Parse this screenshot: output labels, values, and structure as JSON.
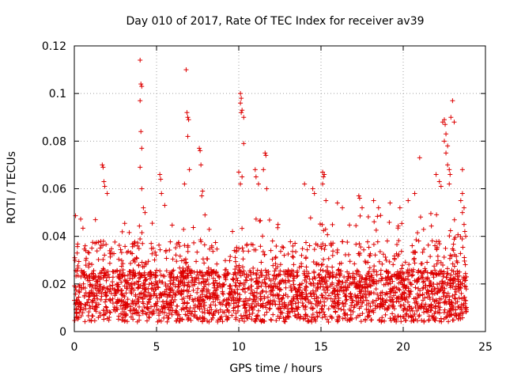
{
  "chart_data": {
    "type": "scatter",
    "title": "Day 010 of 2017, Rate Of TEC Index for receiver av39",
    "xlabel": "GPS time / hours",
    "ylabel": "ROTI / TECUs",
    "xlim": [
      0,
      25
    ],
    "ylim": [
      0,
      0.12
    ],
    "xticks": [
      0,
      5,
      10,
      15,
      20,
      25
    ],
    "xtick_labels": [
      "0",
      "5",
      "10",
      "15",
      "20",
      "25"
    ],
    "yticks": [
      0,
      0.02,
      0.04,
      0.06,
      0.08,
      0.1,
      0.12
    ],
    "ytick_labels": [
      "0",
      "0.02",
      "0.04",
      "0.06",
      "0.08",
      "0.1",
      "0.12"
    ],
    "grid": true,
    "marker": "+",
    "color": "#dd0000",
    "series": [
      {
        "points": [
          [
            1.7,
            0.07
          ],
          [
            1.75,
            0.069
          ],
          [
            1.8,
            0.063
          ],
          [
            1.85,
            0.061
          ],
          [
            2.0,
            0.058
          ],
          [
            4.0,
            0.114
          ],
          [
            4.05,
            0.104
          ],
          [
            4.1,
            0.103
          ],
          [
            4.0,
            0.097
          ],
          [
            4.05,
            0.084
          ],
          [
            4.1,
            0.077
          ],
          [
            4.0,
            0.069
          ],
          [
            4.1,
            0.06
          ],
          [
            4.2,
            0.052
          ],
          [
            4.3,
            0.05
          ],
          [
            5.2,
            0.066
          ],
          [
            5.25,
            0.064
          ],
          [
            5.3,
            0.058
          ],
          [
            5.5,
            0.053
          ],
          [
            6.8,
            0.11
          ],
          [
            6.85,
            0.092
          ],
          [
            6.9,
            0.09
          ],
          [
            6.95,
            0.089
          ],
          [
            6.9,
            0.082
          ],
          [
            7.0,
            0.068
          ],
          [
            6.7,
            0.062
          ],
          [
            7.6,
            0.077
          ],
          [
            7.65,
            0.076
          ],
          [
            7.7,
            0.07
          ],
          [
            7.8,
            0.059
          ],
          [
            7.75,
            0.057
          ],
          [
            10.1,
            0.1
          ],
          [
            10.15,
            0.098
          ],
          [
            10.1,
            0.096
          ],
          [
            10.2,
            0.093
          ],
          [
            10.15,
            0.092
          ],
          [
            10.3,
            0.09
          ],
          [
            10.3,
            0.079
          ],
          [
            10.0,
            0.067
          ],
          [
            10.2,
            0.065
          ],
          [
            10.1,
            0.062
          ],
          [
            11.0,
            0.068
          ],
          [
            11.05,
            0.065
          ],
          [
            11.6,
            0.075
          ],
          [
            11.65,
            0.074
          ],
          [
            11.5,
            0.068
          ],
          [
            11.2,
            0.062
          ],
          [
            11.7,
            0.06
          ],
          [
            14.0,
            0.062
          ],
          [
            14.5,
            0.06
          ],
          [
            14.6,
            0.058
          ],
          [
            15.1,
            0.067
          ],
          [
            15.2,
            0.066
          ],
          [
            15.15,
            0.065
          ],
          [
            15.1,
            0.062
          ],
          [
            15.3,
            0.055
          ],
          [
            16.0,
            0.054
          ],
          [
            16.3,
            0.052
          ],
          [
            17.3,
            0.057
          ],
          [
            17.35,
            0.056
          ],
          [
            17.5,
            0.052
          ],
          [
            18.2,
            0.055
          ],
          [
            18.5,
            0.052
          ],
          [
            19.2,
            0.054
          ],
          [
            19.8,
            0.052
          ],
          [
            20.3,
            0.055
          ],
          [
            20.7,
            0.058
          ],
          [
            21.0,
            0.073
          ],
          [
            22.0,
            0.066
          ],
          [
            22.2,
            0.063
          ],
          [
            22.3,
            0.061
          ],
          [
            22.4,
            0.088
          ],
          [
            22.5,
            0.089
          ],
          [
            22.55,
            0.087
          ],
          [
            22.6,
            0.083
          ],
          [
            22.5,
            0.08
          ],
          [
            22.7,
            0.078
          ],
          [
            22.6,
            0.075
          ],
          [
            22.7,
            0.07
          ],
          [
            22.8,
            0.068
          ],
          [
            22.85,
            0.066
          ],
          [
            23.0,
            0.097
          ],
          [
            22.9,
            0.09
          ],
          [
            23.1,
            0.088
          ],
          [
            22.8,
            0.062
          ],
          [
            23.6,
            0.068
          ],
          [
            23.6,
            0.058
          ],
          [
            23.5,
            0.055
          ],
          [
            23.7,
            0.052
          ],
          [
            23.6,
            0.05
          ],
          [
            23.7,
            0.045
          ],
          [
            23.8,
            0.04
          ]
        ]
      }
    ]
  }
}
